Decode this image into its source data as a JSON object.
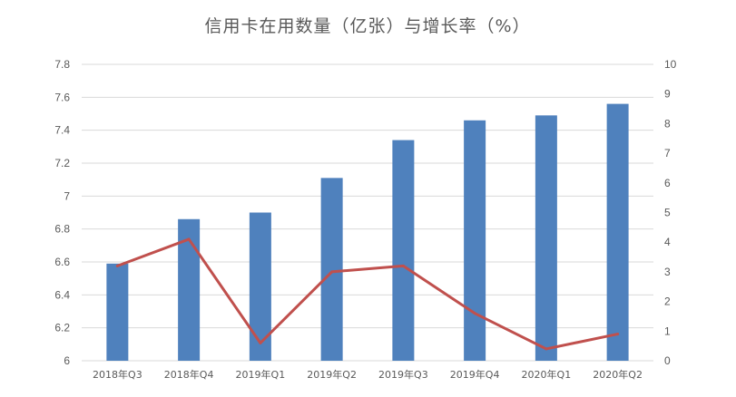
{
  "chart_data": {
    "type": "bar",
    "title": "信用卡在用数量（亿张）与增长率（%）",
    "categories": [
      "2018年Q3",
      "2018年Q4",
      "2019年Q1",
      "2019年Q2",
      "2019年Q3",
      "2019年Q4",
      "2020年Q1",
      "2020年Q2"
    ],
    "series": [
      {
        "type": "bar",
        "axis": "left",
        "color": "#4f81bd",
        "values": [
          6.59,
          6.86,
          6.9,
          7.11,
          7.34,
          7.46,
          7.49,
          7.56
        ]
      },
      {
        "type": "line",
        "axis": "right",
        "color": "#c0504d",
        "values": [
          3.2,
          4.1,
          0.6,
          3.0,
          3.2,
          1.6,
          0.4,
          0.9
        ]
      }
    ],
    "y_left": {
      "ylim": [
        6,
        7.8
      ],
      "ticks": [
        "6",
        "6.2",
        "6.4",
        "6.6",
        "6.8",
        "7",
        "7.2",
        "7.4",
        "7.6",
        "7.8"
      ]
    },
    "y_right": {
      "ylim": [
        0,
        10
      ],
      "ticks": [
        "0",
        "1",
        "2",
        "3",
        "4",
        "5",
        "6",
        "7",
        "8",
        "9",
        "10"
      ]
    },
    "xlabel": "",
    "ylabel": "",
    "grid": true,
    "legend": "none"
  }
}
